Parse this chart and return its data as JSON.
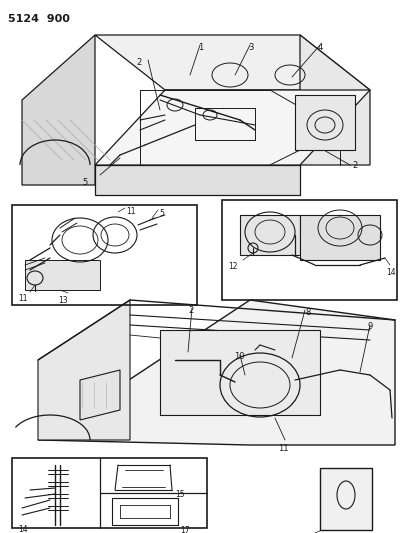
{
  "title": "5124  900",
  "bg": "#ffffff",
  "lc": "#1a1a1a",
  "figsize": [
    4.08,
    5.33
  ],
  "dpi": 100
}
